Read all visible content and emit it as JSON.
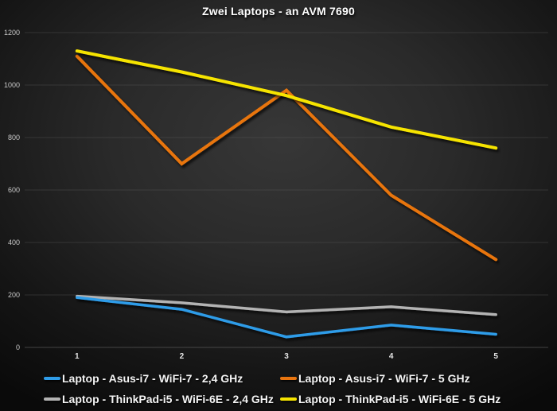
{
  "chart_data": {
    "type": "line",
    "title": "Zwei Laptops - an AVM 7690",
    "xlabel": "",
    "ylabel": "",
    "x_categories": [
      "1",
      "2",
      "3",
      "4",
      "5"
    ],
    "ylim": [
      0,
      1200
    ],
    "ytick_step": 200,
    "ytick_labels": [
      "0",
      "200",
      "400",
      "600",
      "800",
      "1000",
      "1200"
    ],
    "grid": "horizontal",
    "legend_position": "bottom",
    "series": [
      {
        "name": "Laptop - Asus-i7 - WiFi-7 - 2,4 GHz",
        "color": "#2f9ce8",
        "values": [
          190,
          145,
          40,
          85,
          50
        ]
      },
      {
        "name": "Laptop - Asus-i7 - WiFi-7 - 5 GHz",
        "color": "#e8750f",
        "values": [
          1110,
          700,
          980,
          580,
          335
        ]
      },
      {
        "name": "Laptop - ThinkPad-i5 - WiFi-6E - 2,4 GHz",
        "color": "#b3b3b3",
        "values": [
          195,
          170,
          135,
          155,
          125
        ]
      },
      {
        "name": "Laptop - ThinkPad-i5 - WiFi-6E - 5 GHz",
        "color": "#f6e400",
        "values": [
          1130,
          1050,
          960,
          840,
          760
        ]
      }
    ]
  },
  "colors": {
    "background": "#0a0a0a",
    "plot_glow": "#373737",
    "gridline": "#5c5c5c",
    "axis_line": "#6e6e6e",
    "y_tick_text": "#c8c8c8",
    "x_tick_text": "#e6e6e6",
    "title_text": "#ffffff",
    "legend_text": "#f4f4f4"
  }
}
